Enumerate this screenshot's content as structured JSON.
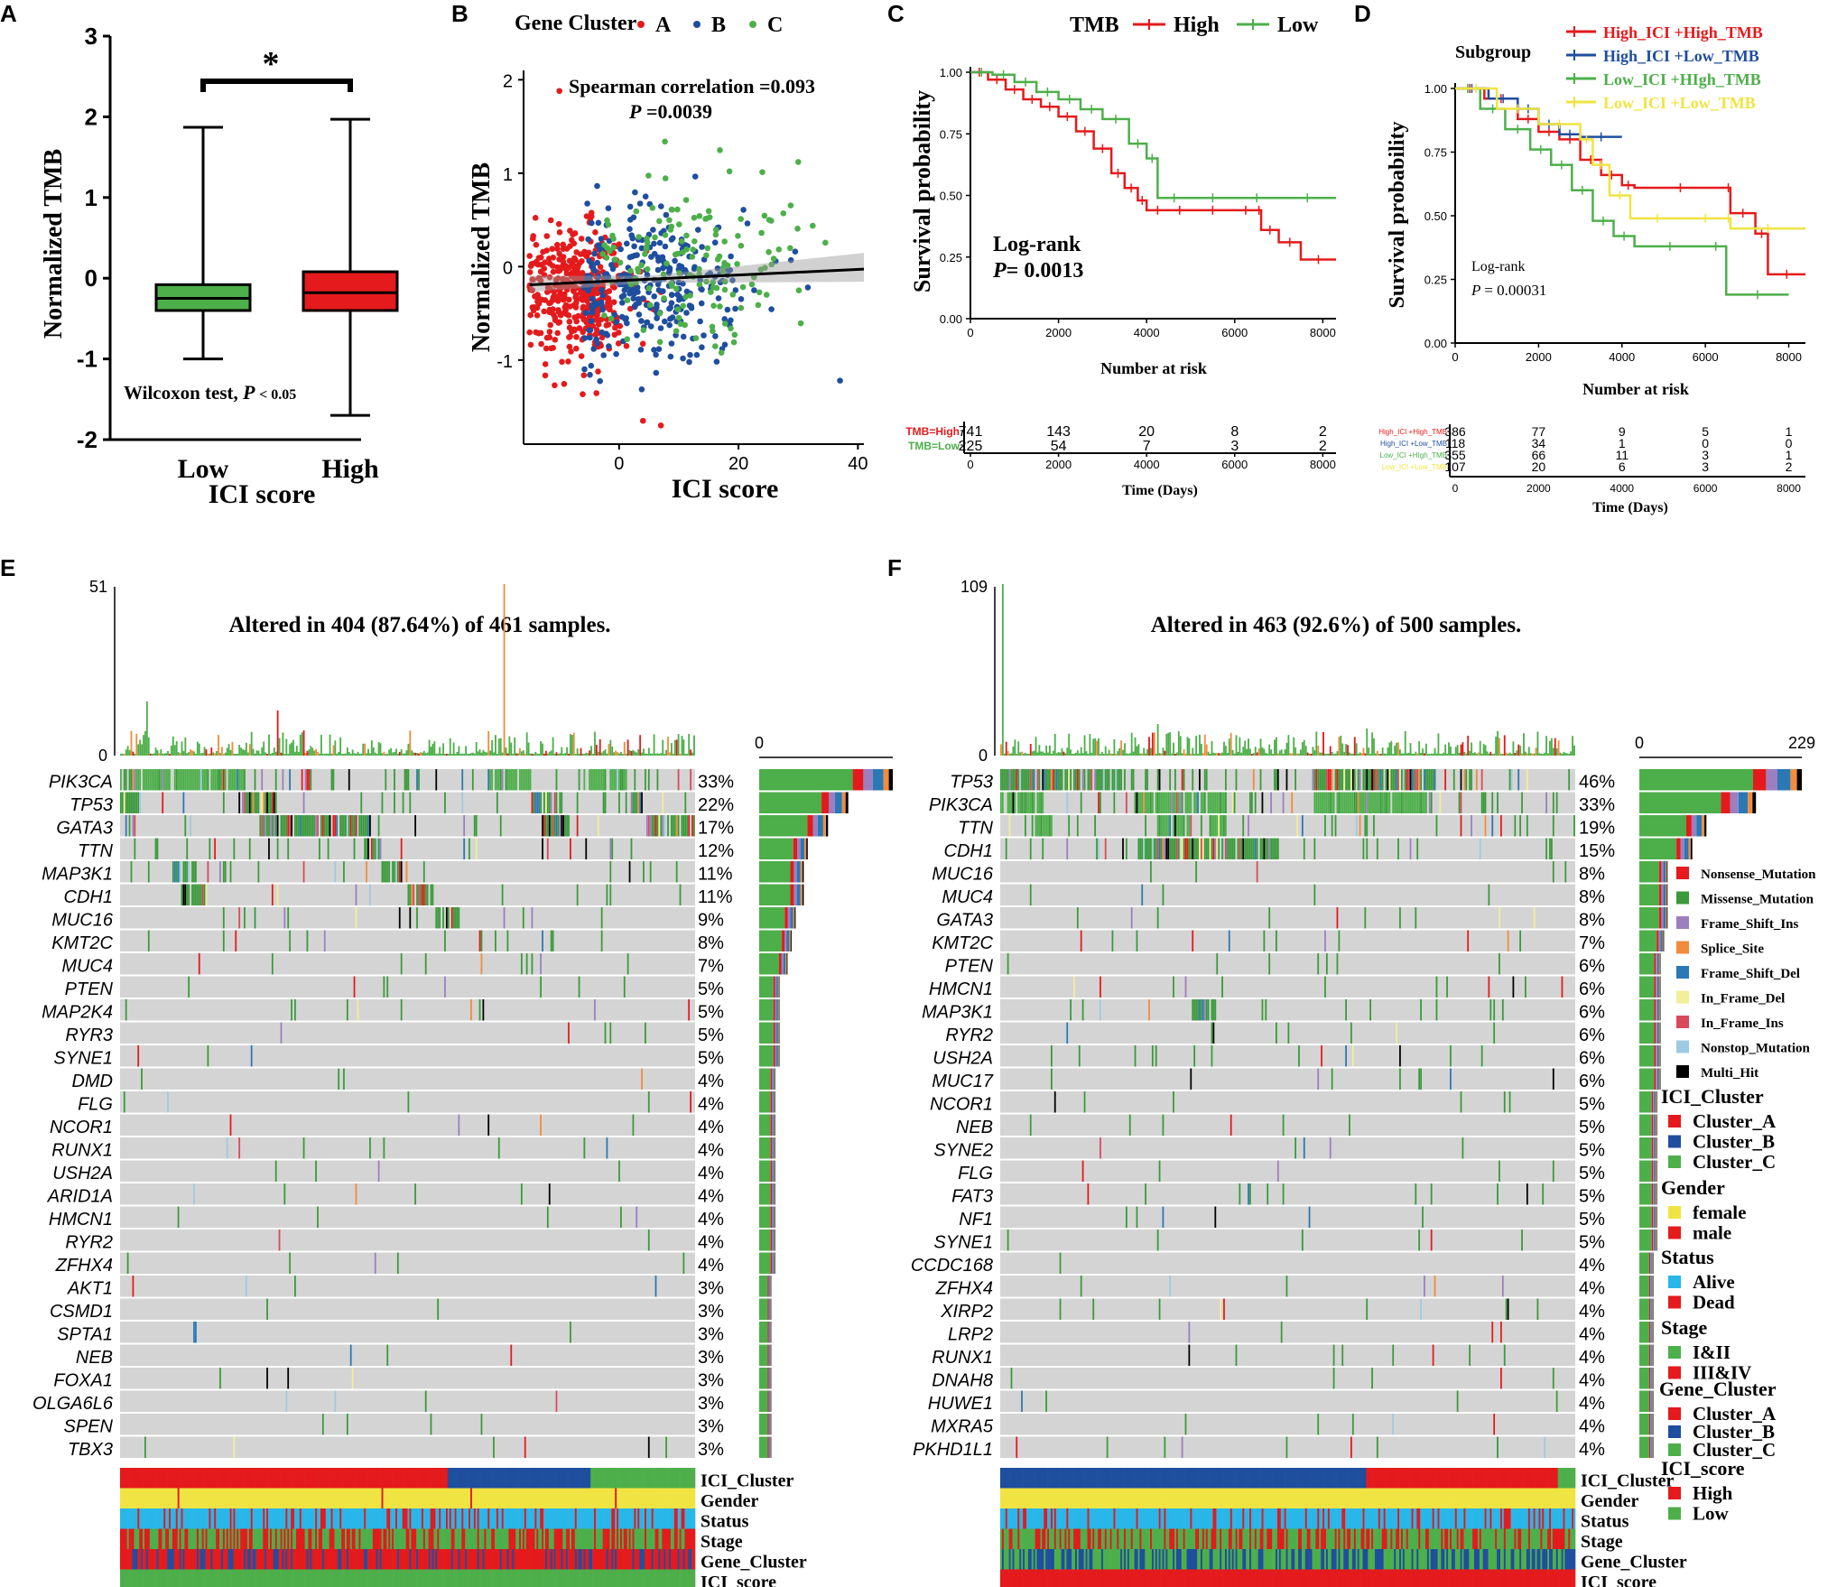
{
  "colors": {
    "red": "#e41a1c",
    "green": "#4daf4a",
    "blue": "#1f4e9e",
    "yellow": "#f0e442",
    "purple": "#9b7fbf",
    "orange": "#f08c3c",
    "midblue": "#2a78b4",
    "lightyellow": "#f2ee9a",
    "pinkred": "#d84a5a",
    "lightblue": "#9ecae1",
    "black": "#000000",
    "grey": "#d4d4d4",
    "cyan": "#29b6e8"
  },
  "chart_data": [
    {
      "panel": "A",
      "type": "box",
      "ylabel": "Normalized TMB",
      "xlabel": "ICI score",
      "categories": [
        "Low",
        "High"
      ],
      "box_colors": [
        "#4daf4a",
        "#e41a1c"
      ],
      "yticks": [
        "3",
        "2",
        "1",
        "0",
        "-1",
        "-2"
      ],
      "ylim": [
        -2,
        3
      ],
      "series": [
        {
          "name": "Low",
          "q1": -0.4,
          "median": -0.25,
          "q3": -0.08,
          "min": -1.0,
          "max": 1.87
        },
        {
          "name": "High",
          "q1": -0.4,
          "median": -0.18,
          "q3": 0.08,
          "min": -1.7,
          "max": 1.97
        }
      ],
      "significance": "*",
      "annotation": "Wilcoxon test,",
      "annotation_p": "P",
      "annotation_val": "< 0.05"
    },
    {
      "panel": "B",
      "type": "scatter",
      "xlabel": "ICI score",
      "ylabel": "Normalized TMB",
      "legend_title": "Gene Cluster",
      "legend": [
        {
          "name": "A",
          "color": "#e41a1c"
        },
        {
          "name": "B",
          "color": "#1f4e9e"
        },
        {
          "name": "C",
          "color": "#4daf4a"
        }
      ],
      "xticks": [
        "0",
        "20",
        "40"
      ],
      "yticks": [
        "2",
        "1",
        "0",
        "-1"
      ],
      "xlim": [
        -16,
        41
      ],
      "ylim": [
        -1.9,
        2.1
      ],
      "annotation_line1": "Spearman correlation =0.093",
      "annotation_p": "P",
      "annotation_val": " =0.0039",
      "fit": {
        "intercept": -0.15,
        "slope": 0.003
      },
      "outliers": [
        {
          "x": -10,
          "y": 1.88,
          "cluster": "A"
        },
        {
          "x": 4,
          "y": -1.65,
          "cluster": "A"
        },
        {
          "x": 7,
          "y": -1.7,
          "cluster": "A"
        },
        {
          "x": 30,
          "y": 1.12,
          "cluster": "C"
        },
        {
          "x": 37,
          "y": -1.22,
          "cluster": "B"
        }
      ]
    },
    {
      "panel": "C",
      "type": "line",
      "subtype": "kaplan-meier",
      "legend_title": "TMB",
      "xlabel": "Number at risk",
      "ylabel": "Survival probability",
      "xticks": [
        "0",
        "2000",
        "4000",
        "6000",
        "8000"
      ],
      "yticks": [
        "1.00",
        "0.75",
        "0.50",
        "0.25",
        "0.00"
      ],
      "xlim": [
        0,
        8300
      ],
      "ylim": [
        0,
        1
      ],
      "series": [
        {
          "name": "High",
          "color": "#e41a1c",
          "points": [
            [
              0,
              1.0
            ],
            [
              400,
              0.97
            ],
            [
              800,
              0.93
            ],
            [
              1200,
              0.89
            ],
            [
              1600,
              0.86
            ],
            [
              2000,
              0.82
            ],
            [
              2400,
              0.76
            ],
            [
              2800,
              0.69
            ],
            [
              3200,
              0.59
            ],
            [
              3500,
              0.53
            ],
            [
              3800,
              0.48
            ],
            [
              4000,
              0.44
            ],
            [
              4500,
              0.44
            ],
            [
              5000,
              0.44
            ],
            [
              6000,
              0.44
            ],
            [
              6500,
              0.44
            ],
            [
              6600,
              0.36
            ],
            [
              7000,
              0.31
            ],
            [
              7500,
              0.24
            ],
            [
              8300,
              0.24
            ]
          ]
        },
        {
          "name": "Low",
          "color": "#4daf4a",
          "points": [
            [
              0,
              1.0
            ],
            [
              500,
              0.99
            ],
            [
              1000,
              0.96
            ],
            [
              1500,
              0.92
            ],
            [
              2000,
              0.89
            ],
            [
              2500,
              0.85
            ],
            [
              3000,
              0.81
            ],
            [
              3600,
              0.71
            ],
            [
              4000,
              0.65
            ],
            [
              4250,
              0.49
            ],
            [
              5000,
              0.49
            ],
            [
              6000,
              0.49
            ],
            [
              7000,
              0.49
            ],
            [
              8300,
              0.49
            ]
          ]
        }
      ],
      "logrank_label": "Log-rank",
      "p_label": "P",
      "p_value": "= 0.0013",
      "risk_table": {
        "xlabel": "Time (Days)",
        "rows": [
          {
            "label": "TMB=High",
            "color": "#e41a1c",
            "values": [
              "741",
              "143",
              "20",
              "8",
              "2"
            ]
          },
          {
            "label": "TMB=Low",
            "color": "#4daf4a",
            "values": [
              "225",
              "54",
              "7",
              "3",
              "2"
            ]
          }
        ]
      }
    },
    {
      "panel": "D",
      "type": "line",
      "subtype": "kaplan-meier",
      "legend_title": "Subgroup",
      "xlabel": "Number at risk",
      "ylabel": "Survival probability",
      "xticks": [
        "0",
        "2000",
        "4000",
        "6000",
        "8000"
      ],
      "yticks": [
        "1.00",
        "0.75",
        "0.50",
        "0.25",
        "0.00"
      ],
      "xlim": [
        0,
        8400
      ],
      "ylim": [
        0,
        1
      ],
      "series": [
        {
          "name": "High_ICI +High_TMB",
          "color": "#e41a1c",
          "points": [
            [
              0,
              1.0
            ],
            [
              700,
              0.96
            ],
            [
              1500,
              0.88
            ],
            [
              2000,
              0.83
            ],
            [
              2500,
              0.8
            ],
            [
              3000,
              0.72
            ],
            [
              3500,
              0.66
            ],
            [
              4000,
              0.62
            ],
            [
              4300,
              0.61
            ],
            [
              6500,
              0.61
            ],
            [
              6600,
              0.51
            ],
            [
              7200,
              0.43
            ],
            [
              7500,
              0.27
            ],
            [
              8400,
              0.27
            ]
          ]
        },
        {
          "name": "High_ICI +Low_TMB",
          "color": "#1f4e9e",
          "points": [
            [
              0,
              1.0
            ],
            [
              800,
              0.96
            ],
            [
              1500,
              0.92
            ],
            [
              2000,
              0.86
            ],
            [
              2500,
              0.82
            ],
            [
              3000,
              0.81
            ],
            [
              4000,
              0.81
            ]
          ]
        },
        {
          "name": "Low_ICI +HIgh_TMB",
          "color": "#4daf4a",
          "points": [
            [
              0,
              1.0
            ],
            [
              600,
              0.92
            ],
            [
              1200,
              0.84
            ],
            [
              1800,
              0.76
            ],
            [
              2300,
              0.7
            ],
            [
              2800,
              0.6
            ],
            [
              3300,
              0.48
            ],
            [
              3800,
              0.42
            ],
            [
              4300,
              0.38
            ],
            [
              6000,
              0.38
            ],
            [
              6500,
              0.19
            ],
            [
              8000,
              0.19
            ]
          ]
        },
        {
          "name": "Low_ICI +Low_TMB",
          "color": "#f0e442",
          "points": [
            [
              0,
              1.0
            ],
            [
              1000,
              0.92
            ],
            [
              2000,
              0.86
            ],
            [
              3000,
              0.8
            ],
            [
              3300,
              0.7
            ],
            [
              3700,
              0.58
            ],
            [
              4200,
              0.49
            ],
            [
              5500,
              0.49
            ],
            [
              6500,
              0.49
            ],
            [
              6600,
              0.45
            ],
            [
              8400,
              0.45
            ]
          ]
        }
      ],
      "logrank_label": "Log-rank",
      "p_label": "P",
      "p_value": "= 0.00031",
      "risk_table": {
        "xlabel": "Time (Days)",
        "rows": [
          {
            "label": "High_ICI +High_TMB",
            "color": "#e41a1c",
            "values": [
              "386",
              "77",
              "9",
              "5",
              "1"
            ]
          },
          {
            "label": "High_ICI +Low_TMB",
            "color": "#1f4e9e",
            "values": [
              "118",
              "34",
              "1",
              "0",
              "0"
            ]
          },
          {
            "label": "Low_ICI +HIgh_TMB",
            "color": "#4daf4a",
            "values": [
              "355",
              "66",
              "11",
              "3",
              "1"
            ]
          },
          {
            "label": "Low_ICI +Low_TMB",
            "color": "#f0e442",
            "values": [
              "107",
              "20",
              "6",
              "3",
              "2"
            ]
          }
        ]
      }
    },
    {
      "panel": "E",
      "type": "heatmap",
      "subtype": "oncoplot",
      "title": "Altered in 404 (87.64%) of 461 samples.",
      "tmb_max": "51",
      "tmb_min": "0",
      "bar_min": "0",
      "genes": [
        "PIK3CA",
        "TP53",
        "GATA3",
        "TTN",
        "MAP3K1",
        "CDH1",
        "MUC16",
        "KMT2C",
        "MUC4",
        "PTEN",
        "MAP2K4",
        "RYR3",
        "SYNE1",
        "DMD",
        "FLG",
        "NCOR1",
        "RUNX1",
        "USH2A",
        "ARID1A",
        "HMCN1",
        "RYR2",
        "ZFHX4",
        "AKT1",
        "CSMD1",
        "SPTA1",
        "NEB",
        "FOXA1",
        "OLGA6L6",
        "SPEN",
        "TBX3"
      ],
      "percents": [
        "33%",
        "22%",
        "17%",
        "12%",
        "11%",
        "11%",
        "9%",
        "8%",
        "7%",
        "5%",
        "5%",
        "5%",
        "5%",
        "4%",
        "4%",
        "4%",
        "4%",
        "4%",
        "4%",
        "4%",
        "4%",
        "4%",
        "3%",
        "3%",
        "3%",
        "3%",
        "3%",
        "3%",
        "3%",
        "3%"
      ],
      "annotations": [
        "ICI_Cluster",
        "Gender",
        "Status",
        "Stage",
        "Gene_Cluster",
        "ICI_score"
      ]
    },
    {
      "panel": "F",
      "type": "heatmap",
      "subtype": "oncoplot",
      "title": "Altered in 463 (92.6%) of 500 samples.",
      "tmb_max": "109",
      "tmb_min": "0",
      "bar_min": "0",
      "bar_max": "229",
      "genes": [
        "TP53",
        "PIK3CA",
        "TTN",
        "CDH1",
        "MUC16",
        "MUC4",
        "GATA3",
        "KMT2C",
        "PTEN",
        "HMCN1",
        "MAP3K1",
        "RYR2",
        "USH2A",
        "MUC17",
        "NCOR1",
        "NEB",
        "SYNE2",
        "FLG",
        "FAT3",
        "NF1",
        "SYNE1",
        "CCDC168",
        "ZFHX4",
        "XIRP2",
        "LRP2",
        "RUNX1",
        "DNAH8",
        "HUWE1",
        "MXRA5",
        "PKHD1L1"
      ],
      "percents": [
        "46%",
        "33%",
        "19%",
        "15%",
        "8%",
        "8%",
        "8%",
        "7%",
        "6%",
        "6%",
        "6%",
        "6%",
        "6%",
        "6%",
        "5%",
        "5%",
        "5%",
        "5%",
        "5%",
        "5%",
        "5%",
        "4%",
        "4%",
        "4%",
        "4%",
        "4%",
        "4%",
        "4%",
        "4%",
        "4%"
      ],
      "annotations": [
        "ICI_Cluster",
        "Gender",
        "Status",
        "Stage",
        "Gene_Cluster",
        "ICI_score"
      ]
    }
  ],
  "panel_labels": [
    "A",
    "B",
    "C",
    "D",
    "E",
    "F"
  ],
  "legend_variants": [
    {
      "name": "Nonsense_Mutation",
      "color": "#e41a1c"
    },
    {
      "name": "Missense_Mutation",
      "color": "#3a9a3a"
    },
    {
      "name": "Frame_Shift_Ins",
      "color": "#9b7fbf"
    },
    {
      "name": "Splice_Site",
      "color": "#f08c3c"
    },
    {
      "name": "Frame_Shift_Del",
      "color": "#2a78b4"
    },
    {
      "name": "In_Frame_Del",
      "color": "#f2ee9a"
    },
    {
      "name": "In_Frame_Ins",
      "color": "#d84a5a"
    },
    {
      "name": "Nonstop_Mutation",
      "color": "#9ecae1"
    },
    {
      "name": "Multi_Hit",
      "color": "#000000"
    }
  ],
  "legend_groups": [
    {
      "title": "ICI_Cluster",
      "items": [
        {
          "name": "Cluster_A",
          "color": "#e41a1c"
        },
        {
          "name": "Cluster_B",
          "color": "#1f4e9e"
        },
        {
          "name": "Cluster_C",
          "color": "#4daf4a"
        }
      ]
    },
    {
      "title": "Gender",
      "items": [
        {
          "name": "female",
          "color": "#f0e442"
        },
        {
          "name": "male",
          "color": "#e41a1c"
        }
      ]
    },
    {
      "title": "Status",
      "items": [
        {
          "name": "Alive",
          "color": "#29b6e8"
        },
        {
          "name": "Dead",
          "color": "#e41a1c"
        }
      ]
    },
    {
      "title": "Stage",
      "items": [
        {
          "name": "I&II",
          "color": "#4daf4a"
        },
        {
          "name": "III&IV",
          "color": "#e41a1c"
        }
      ]
    },
    {
      "title": "Gene_Cluster",
      "items": [
        {
          "name": "Cluster_A",
          "color": "#e41a1c"
        },
        {
          "name": "Cluster_B",
          "color": "#1f4e9e"
        },
        {
          "name": "Cluster_C",
          "color": "#4daf4a"
        }
      ]
    },
    {
      "title": "ICI_score",
      "items": [
        {
          "name": "High",
          "color": "#e41a1c"
        },
        {
          "name": "Low",
          "color": "#4daf4a"
        }
      ]
    }
  ]
}
